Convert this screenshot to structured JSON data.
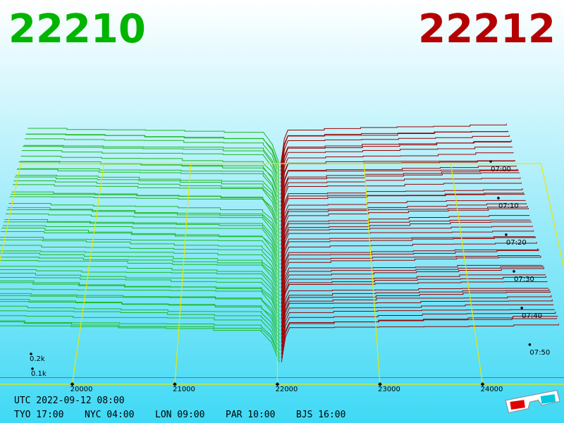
{
  "bid_price": "22210",
  "ask_price": "22212",
  "price_axis": {
    "ticks": [
      20000,
      21000,
      22000,
      23000,
      24000
    ]
  },
  "time_axis": {
    "ticks": [
      "07:00",
      "07:10",
      "07:20",
      "07:30",
      "07:40",
      "07:50"
    ]
  },
  "depth_axis": {
    "ticks": [
      "0.2k",
      "0.1k"
    ]
  },
  "clock": {
    "utc": "UTC 2022-09-12 08:00",
    "cities": [
      "TYO 17:00",
      "NYC 04:00",
      "LON 09:00",
      "PAR 10:00",
      "BJS 16:00"
    ]
  }
}
